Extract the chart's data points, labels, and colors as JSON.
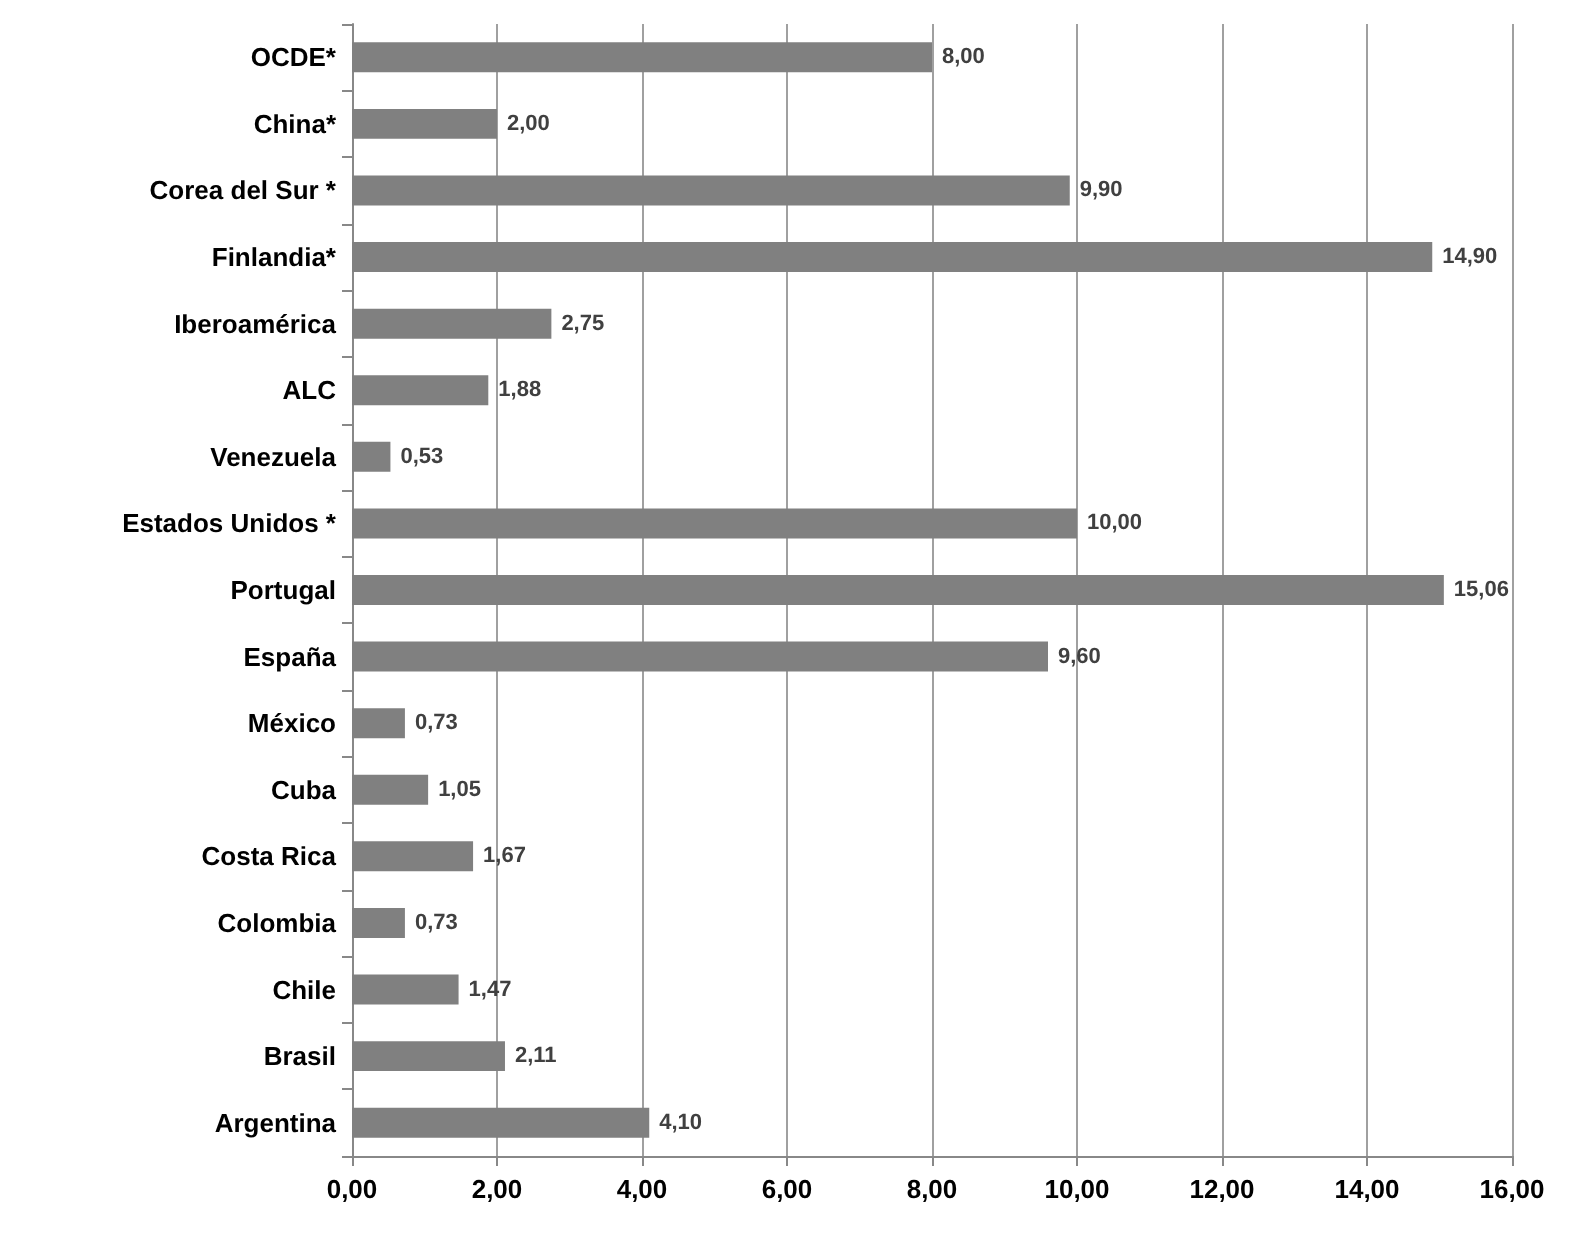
{
  "chart_data": {
    "type": "bar",
    "orientation": "horizontal",
    "categories": [
      "OCDE*",
      "China*",
      "Corea del Sur *",
      "Finlandia*",
      "Iberoamérica",
      "ALC",
      "Venezuela",
      "Estados Unidos *",
      "Portugal",
      "España",
      "México",
      "Cuba",
      "Costa Rica",
      "Colombia",
      "Chile",
      "Brasil",
      "Argentina"
    ],
    "values": [
      8.0,
      2.0,
      9.9,
      14.9,
      2.75,
      1.88,
      0.53,
      10.0,
      15.06,
      9.6,
      0.73,
      1.05,
      1.67,
      0.73,
      1.47,
      2.11,
      4.1
    ],
    "value_labels": [
      "8,00",
      "2,00",
      "9,90",
      "14,90",
      "2,75",
      "1,88",
      "0,53",
      "10,00",
      "15,06",
      "9,60",
      "0,73",
      "1,05",
      "1,67",
      "0,73",
      "1,47",
      "2,11",
      "4,10"
    ],
    "color": "#808080",
    "xlim": [
      0,
      16
    ],
    "xticks": [
      {
        "value": 0,
        "label": "0,00"
      },
      {
        "value": 2,
        "label": "2,00"
      },
      {
        "value": 4,
        "label": "4,00"
      },
      {
        "value": 6,
        "label": "6,00"
      },
      {
        "value": 8,
        "label": "8,00"
      },
      {
        "value": 10,
        "label": "10,00"
      },
      {
        "value": 12,
        "label": "12,00"
      },
      {
        "value": 14,
        "label": "14,00"
      },
      {
        "value": 16,
        "label": "16,00"
      }
    ],
    "grid": "x"
  }
}
